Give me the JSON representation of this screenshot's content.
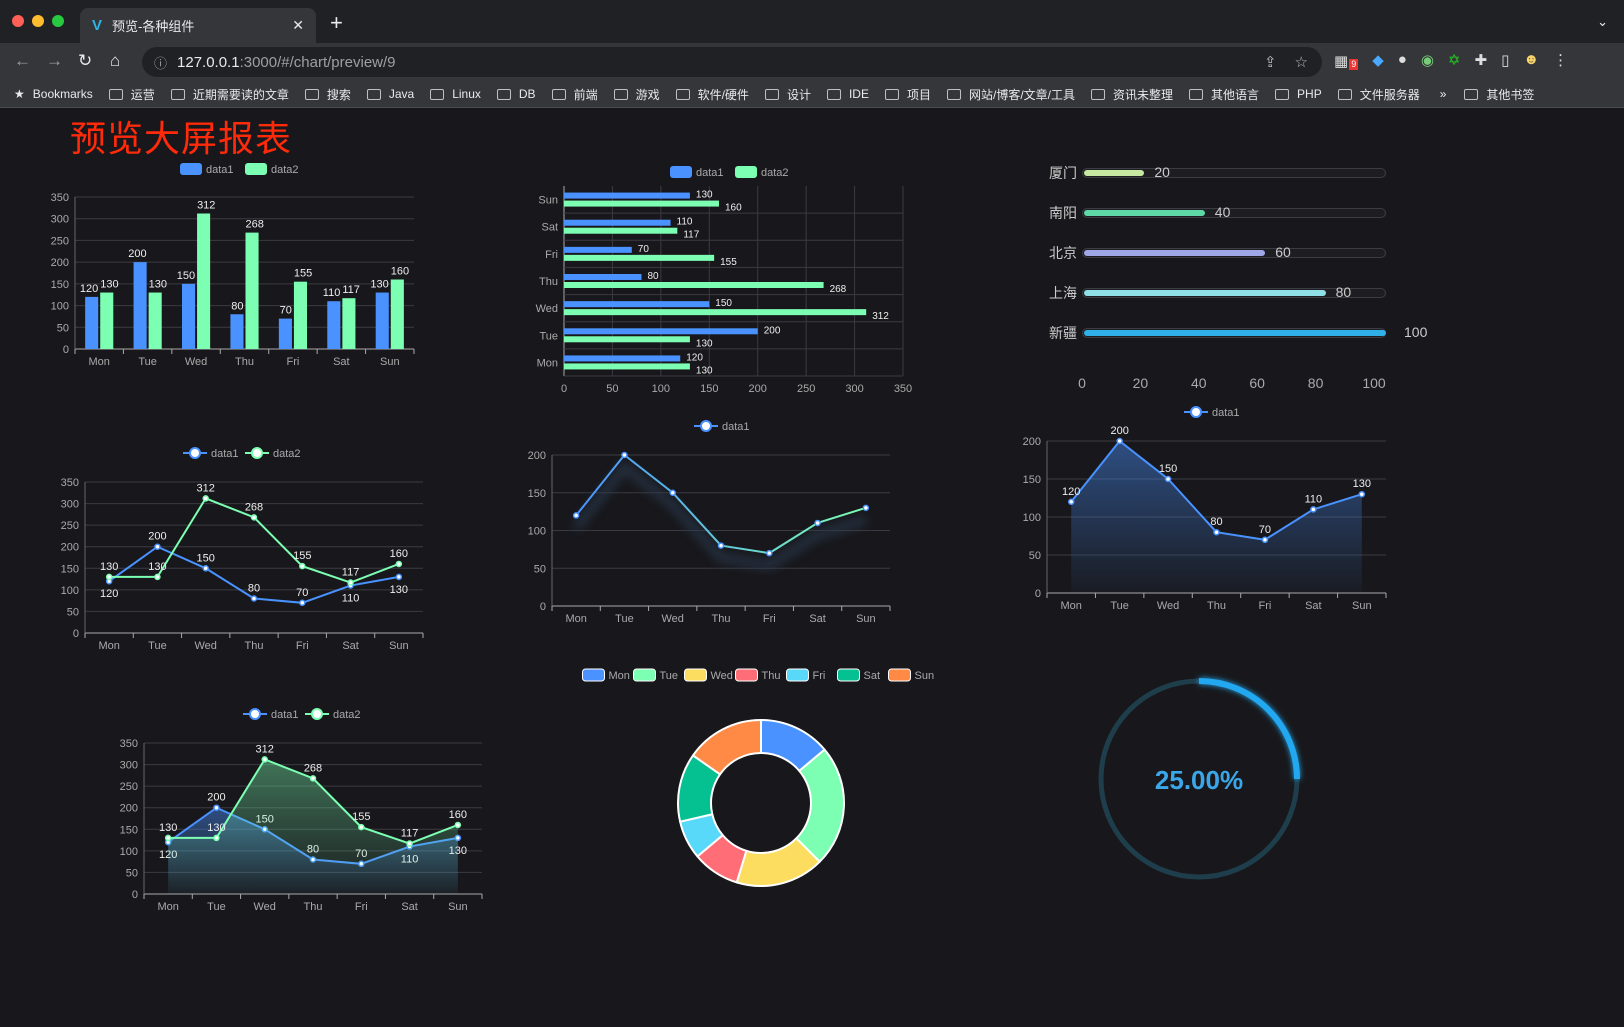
{
  "browser": {
    "tab_title": "预览-各种组件",
    "url_host": "127.0.0.1",
    "url_path": ":3000/#/chart/preview/9",
    "extension_badge": "9",
    "bookmarks": [
      "Bookmarks",
      "运营",
      "近期需要读的文章",
      "搜索",
      "Java",
      "Linux",
      "DB",
      "前端",
      "游戏",
      "软件/硬件",
      "设计",
      "IDE",
      "项目",
      "网站/博客/文章/工具",
      "资讯未整理",
      "其他语言",
      "PHP",
      "文件服务器"
    ],
    "more": "»",
    "other_bookmarks": "其他书签"
  },
  "page": {
    "title": "预览大屏报表",
    "title_color": "#ff2a0a",
    "background": "#18181c"
  },
  "colors": {
    "data1": "#4992ff",
    "data2": "#7cffb2"
  },
  "chart_data": [
    {
      "type": "bar",
      "legend": [
        "data1",
        "data2"
      ],
      "categories": [
        "Mon",
        "Tue",
        "Wed",
        "Thu",
        "Fri",
        "Sat",
        "Sun"
      ],
      "series": [
        {
          "name": "data1",
          "values": [
            120,
            200,
            150,
            80,
            70,
            110,
            130
          ]
        },
        {
          "name": "data2",
          "values": [
            130,
            130,
            312,
            268,
            155,
            117,
            160
          ]
        }
      ],
      "ylim": [
        0,
        350
      ],
      "yticks": [
        "0",
        "50",
        "100",
        "150",
        "200",
        "250",
        "300",
        "350"
      ],
      "grid": true
    },
    {
      "type": "bar",
      "orientation": "horizontal",
      "legend": [
        "data1",
        "data2"
      ],
      "categories": [
        "Mon",
        "Tue",
        "Wed",
        "Thu",
        "Fri",
        "Sat",
        "Sun"
      ],
      "series": [
        {
          "name": "data1",
          "values": [
            120,
            200,
            150,
            80,
            70,
            110,
            130
          ]
        },
        {
          "name": "data2",
          "values": [
            130,
            130,
            312,
            268,
            155,
            117,
            160
          ]
        }
      ],
      "xlim": [
        0,
        350
      ],
      "xticks": [
        "0",
        "50",
        "100",
        "150",
        "200",
        "250",
        "300",
        "350"
      ],
      "grid": true
    },
    {
      "type": "line",
      "legend": [
        "data1",
        "data2"
      ],
      "categories": [
        "Mon",
        "Tue",
        "Wed",
        "Thu",
        "Fri",
        "Sat",
        "Sun"
      ],
      "series": [
        {
          "name": "data1",
          "values": [
            120,
            200,
            150,
            80,
            70,
            110,
            130
          ]
        },
        {
          "name": "data2",
          "values": [
            130,
            130,
            312,
            268,
            155,
            117,
            160
          ]
        }
      ],
      "ylim": [
        0,
        350
      ],
      "yticks": [
        "0",
        "50",
        "100",
        "150",
        "200",
        "250",
        "300",
        "350"
      ],
      "grid": true
    },
    {
      "type": "line",
      "legend": [
        "data1"
      ],
      "categories": [
        "Mon",
        "Tue",
        "Wed",
        "Thu",
        "Fri",
        "Sat",
        "Sun"
      ],
      "series": [
        {
          "name": "data1",
          "values": [
            120,
            200,
            150,
            80,
            70,
            110,
            130
          ]
        }
      ],
      "ylim": [
        0,
        200
      ],
      "yticks": [
        "0",
        "50",
        "100",
        "150",
        "200"
      ],
      "grid": true,
      "line_gradient": [
        "#4992ff",
        "#7cffb2"
      ]
    },
    {
      "type": "area",
      "legend": [
        "data1"
      ],
      "categories": [
        "Mon",
        "Tue",
        "Wed",
        "Thu",
        "Fri",
        "Sat",
        "Sun"
      ],
      "series": [
        {
          "name": "data1",
          "values": [
            120,
            200,
            150,
            80,
            70,
            110,
            130
          ]
        }
      ],
      "ylim": [
        0,
        200
      ],
      "yticks": [
        "0",
        "50",
        "100",
        "150",
        "200"
      ],
      "grid": true
    },
    {
      "type": "area",
      "legend": [
        "data1",
        "data2"
      ],
      "categories": [
        "Mon",
        "Tue",
        "Wed",
        "Thu",
        "Fri",
        "Sat",
        "Sun"
      ],
      "series": [
        {
          "name": "data1",
          "values": [
            120,
            200,
            150,
            80,
            70,
            110,
            130
          ]
        },
        {
          "name": "data2",
          "values": [
            130,
            130,
            312,
            268,
            155,
            117,
            160
          ]
        }
      ],
      "ylim": [
        0,
        350
      ],
      "yticks": [
        "0",
        "50",
        "100",
        "150",
        "200",
        "250",
        "300",
        "350"
      ],
      "grid": true
    },
    {
      "type": "pie",
      "variant": "donut",
      "legend": [
        "Mon",
        "Tue",
        "Wed",
        "Thu",
        "Fri",
        "Sat",
        "Sun"
      ],
      "values": [
        50,
        85,
        62,
        33,
        27,
        48,
        55
      ],
      "colors": [
        "#4992ff",
        "#7cffb2",
        "#fddd60",
        "#ff6e76",
        "#58d9f9",
        "#05c091",
        "#ff8a45"
      ]
    },
    {
      "type": "bar",
      "variant": "progress",
      "categories": [
        "厦门",
        "南阳",
        "北京",
        "上海",
        "新疆"
      ],
      "values": [
        20,
        40,
        60,
        80,
        100
      ],
      "xlim": [
        0,
        100
      ],
      "xticks": [
        "0",
        "20",
        "40",
        "60",
        "80",
        "100"
      ],
      "colors": [
        "#c6e8a0",
        "#5fd8a8",
        "#a0a7e6",
        "#8fdfe6",
        "#2fb0e8"
      ]
    },
    {
      "type": "gauge",
      "value": 25,
      "label": "25.00%",
      "color": "#22a8f0",
      "track_color": "#1f3e4c"
    }
  ]
}
